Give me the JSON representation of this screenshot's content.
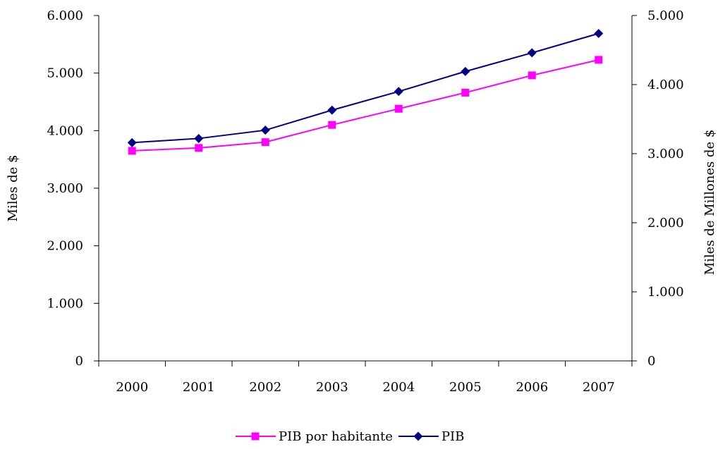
{
  "chart_data": {
    "type": "line",
    "categories": [
      "2000",
      "2001",
      "2002",
      "2003",
      "2004",
      "2005",
      "2006",
      "2007"
    ],
    "y_left": {
      "label": "Miles de $",
      "ylim": [
        0,
        6000
      ],
      "ticks": [
        0,
        1000,
        2000,
        3000,
        4000,
        5000,
        6000
      ],
      "tick_labels": [
        "0",
        "1.000",
        "2.000",
        "3.000",
        "4.000",
        "5.000",
        "6.000"
      ]
    },
    "y_right": {
      "label": "Miles de Millones de $",
      "ylim": [
        0,
        5000
      ],
      "ticks": [
        0,
        1000,
        2000,
        3000,
        4000,
        5000
      ],
      "tick_labels": [
        "0",
        "1.000",
        "2.000",
        "3.000",
        "4.000",
        "5.000"
      ]
    },
    "series": [
      {
        "name": "PIB por habitante",
        "axis": "left",
        "color": "#ff00ff",
        "marker": "square",
        "values": [
          3650,
          3700,
          3800,
          4100,
          4380,
          4660,
          4960,
          5230
        ]
      },
      {
        "name": "PIB",
        "axis": "right",
        "color": "#000080",
        "marker": "diamond",
        "values": [
          3160,
          3220,
          3340,
          3630,
          3900,
          4190,
          4460,
          4740
        ]
      }
    ],
    "grid": false,
    "legend_position": "bottom"
  }
}
